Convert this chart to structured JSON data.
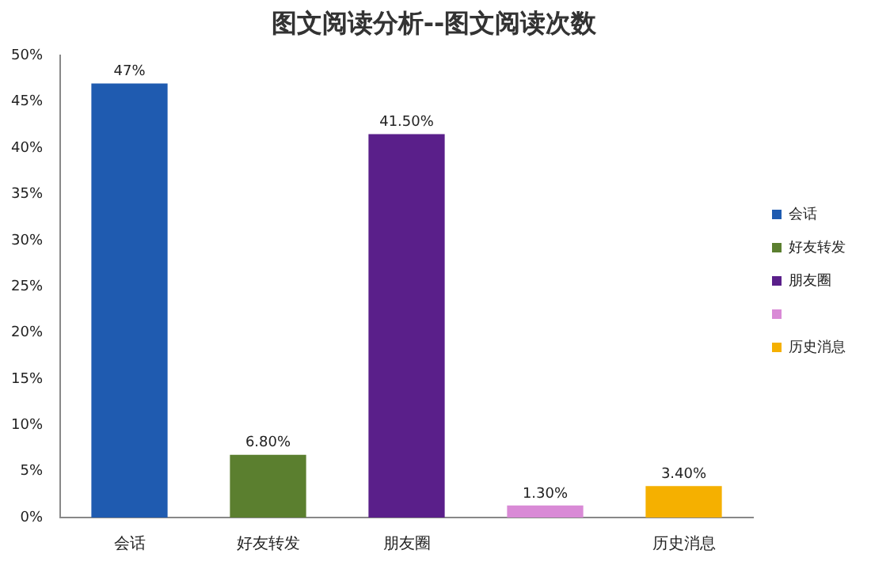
{
  "chart_data": {
    "type": "bar",
    "title": "图文阅读分析--图文阅读次数",
    "categories": [
      "会话",
      "好友转发",
      "朋友圈",
      null,
      "历史消息"
    ],
    "series": [
      {
        "name": "会话",
        "color": "#1f5bb0",
        "values": [
          47,
          null,
          null,
          null,
          null
        ],
        "value_labels": [
          "47%",
          null,
          null,
          null,
          null
        ]
      },
      {
        "name": "好友转发",
        "color": "#5b7f2f",
        "values": [
          null,
          6.8,
          null,
          null,
          null
        ],
        "value_labels": [
          null,
          "6.80%",
          null,
          null,
          null
        ]
      },
      {
        "name": "朋友圈",
        "color": "#5a1f8a",
        "values": [
          null,
          null,
          41.5,
          null,
          null
        ],
        "value_labels": [
          null,
          null,
          "41.50%",
          null,
          null
        ]
      },
      {
        "color": "#d98ad6",
        "values": [
          null,
          null,
          null,
          1.3,
          null
        ],
        "value_labels": [
          null,
          null,
          null,
          "1.30%",
          null
        ]
      },
      {
        "name": "历史消息",
        "color": "#f5b000",
        "values": [
          null,
          null,
          null,
          null,
          3.4
        ],
        "value_labels": [
          null,
          null,
          null,
          null,
          "3.40%"
        ]
      }
    ],
    "ylim": [
      0,
      50
    ],
    "yticks": [
      {
        "value": 0,
        "label": "0%"
      },
      {
        "value": 5,
        "label": "5%"
      },
      {
        "value": 10,
        "label": "10%"
      },
      {
        "value": 15,
        "label": "15%"
      },
      {
        "value": 20,
        "label": "20%"
      },
      {
        "value": 25,
        "label": "25%"
      },
      {
        "value": 30,
        "label": "30%"
      },
      {
        "value": 35,
        "label": "35%"
      },
      {
        "value": 40,
        "label": "40%"
      },
      {
        "value": 45,
        "label": "45%"
      },
      {
        "value": 50,
        "label": "50%"
      }
    ],
    "grid": false,
    "legend": "right"
  }
}
